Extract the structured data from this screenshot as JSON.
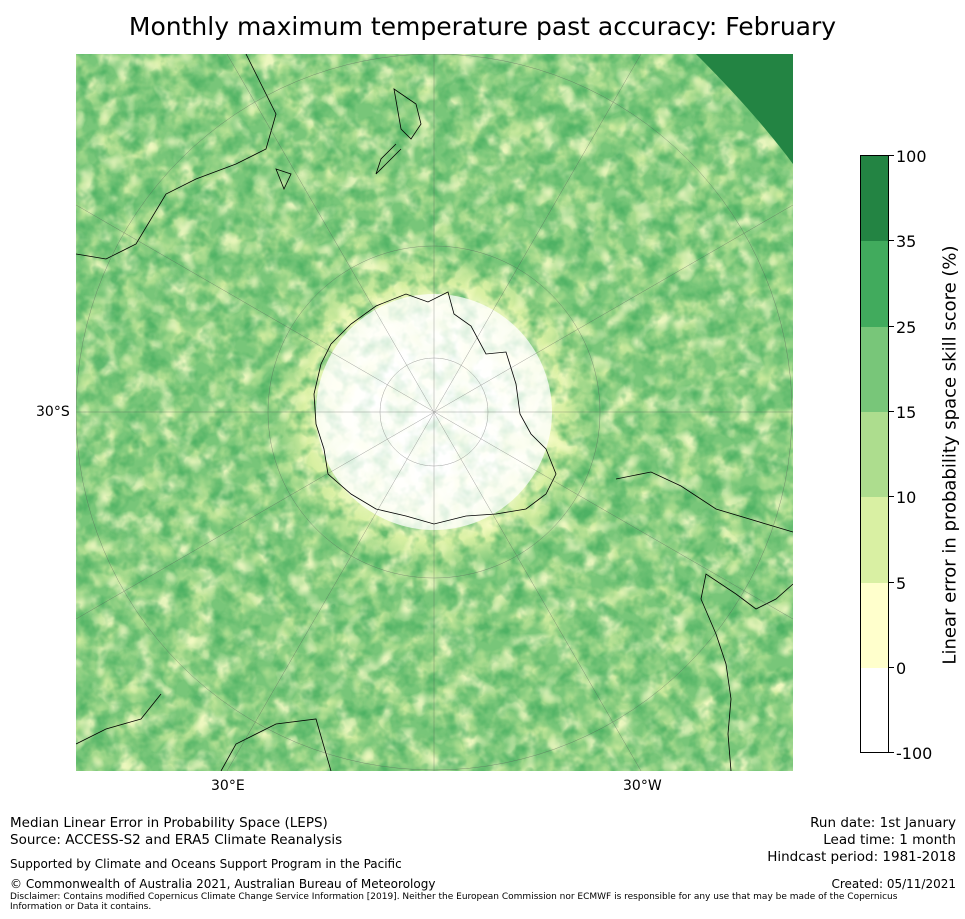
{
  "title": "Monthly maximum temperature past accuracy: February",
  "map": {
    "projection": "South polar stereographic",
    "lat_label": "30°S",
    "lon_labels": {
      "east": "30°E",
      "west": "30°W"
    }
  },
  "colorbar": {
    "label": "Linear error in probability space skill score (%)",
    "ticks": [
      "100",
      "35",
      "25",
      "15",
      "10",
      "5",
      "0",
      "-100"
    ],
    "colors": {
      "c100": "#238443",
      "c35": "#41ab5d",
      "c25": "#78c679",
      "c15": "#addd8e",
      "c10": "#d9f0a3",
      "c5": "#ffffcc",
      "c0": "#ffffff"
    }
  },
  "footer": {
    "method": "Median Linear Error in Probability Space (LEPS)",
    "source": "Source: ACCESS-S2 and ERA5 Climate Reanalysis",
    "support": "Supported by Climate and Oceans Support Program in the Pacific",
    "copyright": "© Commonwealth of Australia 2021, Australian Bureau of Meteorology",
    "disclaimer": "Disclaimer: Contains modified Copernicus Climate Change Service Information [2019]. Neither the European Commission nor ECMWF is responsible for any use that may be made of the Copernicus Information or Data it contains.",
    "run_date": "Run date: 1st January",
    "lead_time": "Lead time: 1 month",
    "hindcast": "Hindcast period: 1981-2018",
    "created": "Created: 05/11/2021"
  }
}
